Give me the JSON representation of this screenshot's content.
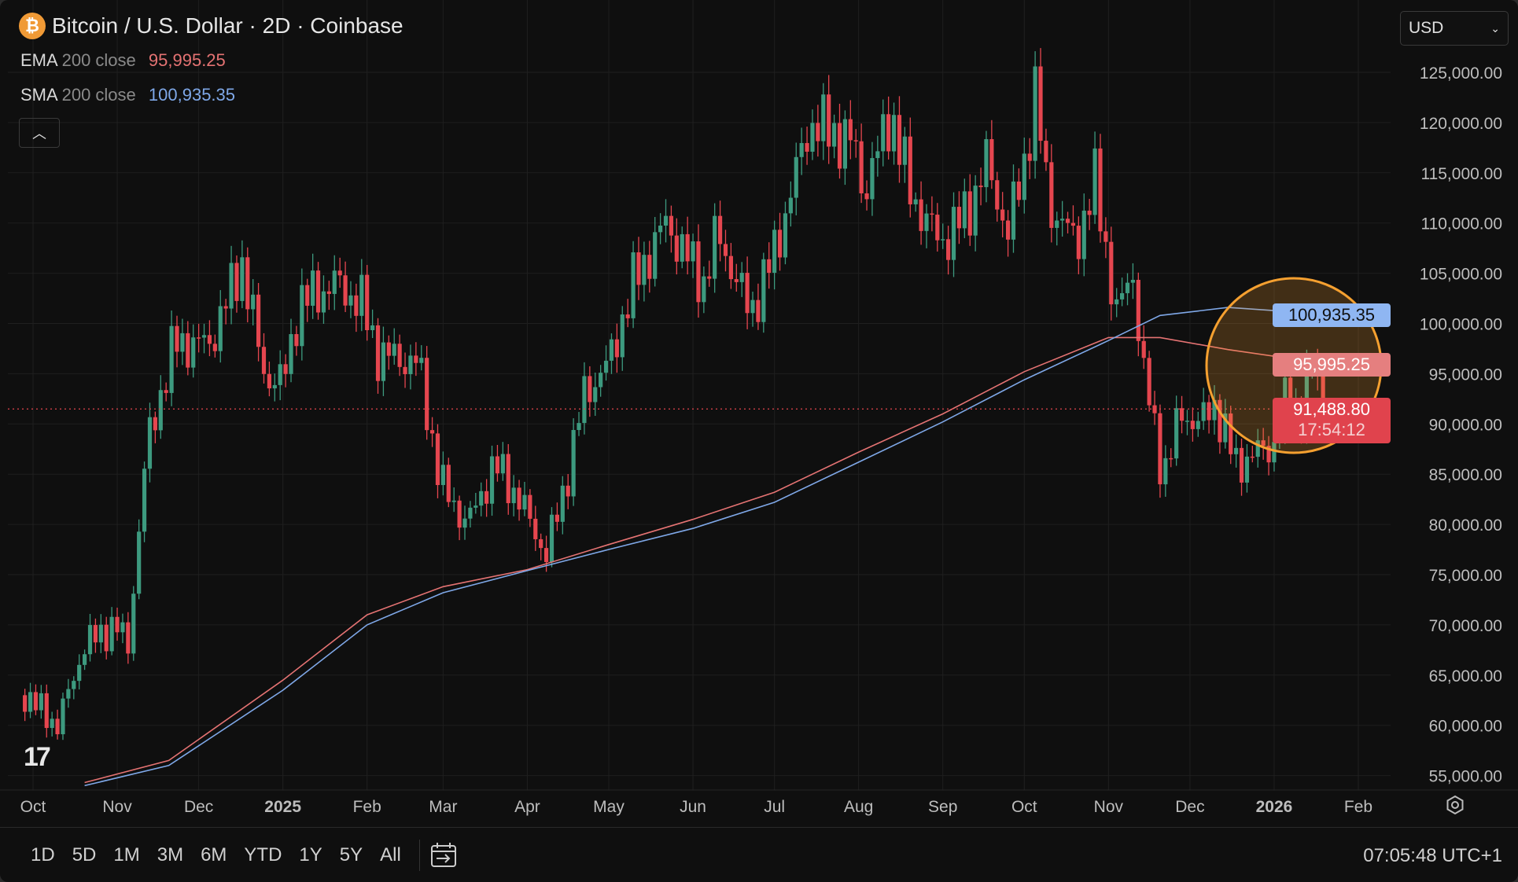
{
  "header": {
    "title": "Bitcoin / U.S. Dollar · 2D · Coinbase",
    "symbol_icon": "bitcoin-icon"
  },
  "indicators": [
    {
      "name": "EMA",
      "params": "200 close",
      "value": "95,995.25",
      "color": "#e57373"
    },
    {
      "name": "SMA",
      "params": "200 close",
      "value": "100,935.35",
      "color": "#7fa8e8"
    }
  ],
  "currency_select": {
    "value": "USD"
  },
  "price_tags": {
    "sma": "100,935.35",
    "ema": "95,995.25",
    "last": "91,488.80",
    "countdown": "17:54:12"
  },
  "toolbar": {
    "ranges": [
      "1D",
      "5D",
      "1M",
      "3M",
      "6M",
      "YTD",
      "1Y",
      "5Y",
      "All"
    ],
    "clock": "07:05:48 UTC+1"
  },
  "colors": {
    "up": "#3d9a7f",
    "down": "#e5464f",
    "bg": "#0f0f0f",
    "highlight": "#f5a030"
  },
  "chart_data": {
    "type": "candlestick",
    "interval": "2D",
    "ylim": [
      55000,
      125000
    ],
    "y_ticks": [
      "125,000.00",
      "120,000.00",
      "115,000.00",
      "110,000.00",
      "105,000.00",
      "100,000.00",
      "95,000.00",
      "90,000.00",
      "85,000.00",
      "80,000.00",
      "75,000.00",
      "70,000.00",
      "65,000.00",
      "60,000.00",
      "55,000.00"
    ],
    "x_ticks": [
      {
        "label": "Oct",
        "date": "2024-10-01"
      },
      {
        "label": "Nov",
        "date": "2024-11-01"
      },
      {
        "label": "Dec",
        "date": "2024-12-01"
      },
      {
        "label": "2025",
        "date": "2025-01-01",
        "bold": true
      },
      {
        "label": "Feb",
        "date": "2025-02-01"
      },
      {
        "label": "Mar",
        "date": "2025-03-01"
      },
      {
        "label": "Apr",
        "date": "2025-04-01"
      },
      {
        "label": "May",
        "date": "2025-05-01"
      },
      {
        "label": "Jun",
        "date": "2025-06-01"
      },
      {
        "label": "Jul",
        "date": "2025-07-01"
      },
      {
        "label": "Aug",
        "date": "2025-08-01"
      },
      {
        "label": "Sep",
        "date": "2025-09-01"
      },
      {
        "label": "Oct",
        "date": "2025-10-01"
      },
      {
        "label": "Nov",
        "date": "2025-11-01"
      },
      {
        "label": "Dec",
        "date": "2025-12-01"
      },
      {
        "label": "2026",
        "date": "2026-01-01",
        "bold": true
      },
      {
        "label": "Feb",
        "date": "2026-02-01"
      }
    ],
    "close_path": [
      [
        "2024-09-28",
        63000
      ],
      [
        "2024-10-10",
        60000
      ],
      [
        "2024-10-20",
        68000
      ],
      [
        "2024-10-31",
        70000
      ],
      [
        "2024-11-05",
        68000
      ],
      [
        "2024-11-12",
        88000
      ],
      [
        "2024-11-22",
        98000
      ],
      [
        "2024-12-05",
        98000
      ],
      [
        "2024-12-17",
        106000
      ],
      [
        "2024-12-25",
        95000
      ],
      [
        "2025-01-01",
        94000
      ],
      [
        "2025-01-07",
        102000
      ],
      [
        "2025-01-20",
        104000
      ],
      [
        "2025-01-30",
        102000
      ],
      [
        "2025-02-05",
        97000
      ],
      [
        "2025-02-20",
        96000
      ],
      [
        "2025-02-28",
        84000
      ],
      [
        "2025-03-10",
        80000
      ],
      [
        "2025-03-20",
        86000
      ],
      [
        "2025-03-28",
        83000
      ],
      [
        "2025-04-08",
        77000
      ],
      [
        "2025-04-15",
        84000
      ],
      [
        "2025-04-22",
        93000
      ],
      [
        "2025-05-01",
        96000
      ],
      [
        "2025-05-10",
        104000
      ],
      [
        "2025-05-22",
        110000
      ],
      [
        "2025-06-05",
        104000
      ],
      [
        "2025-06-10",
        109000
      ],
      [
        "2025-06-22",
        101000
      ],
      [
        "2025-07-01",
        107000
      ],
      [
        "2025-07-10",
        116000
      ],
      [
        "2025-07-14",
        120000
      ],
      [
        "2025-07-30",
        118000
      ],
      [
        "2025-08-03",
        113000
      ],
      [
        "2025-08-13",
        121000
      ],
      [
        "2025-08-20",
        113000
      ],
      [
        "2025-08-31",
        108000
      ],
      [
        "2025-09-10",
        111000
      ],
      [
        "2025-09-17",
        116000
      ],
      [
        "2025-09-25",
        109000
      ],
      [
        "2025-10-01",
        116000
      ],
      [
        "2025-10-05",
        123000
      ],
      [
        "2025-10-10",
        112000
      ],
      [
        "2025-10-20",
        108000
      ],
      [
        "2025-10-27",
        114000
      ],
      [
        "2025-11-04",
        101000
      ],
      [
        "2025-11-10",
        105000
      ],
      [
        "2025-11-14",
        95000
      ],
      [
        "2025-11-21",
        85000
      ],
      [
        "2025-11-28",
        91000
      ],
      [
        "2025-12-05",
        90000
      ],
      [
        "2025-12-10",
        92000
      ],
      [
        "2025-12-18",
        86000
      ],
      [
        "2025-12-25",
        87000
      ],
      [
        "2026-01-01",
        88000
      ],
      [
        "2026-01-05",
        92000
      ],
      [
        "2026-01-12",
        91000
      ],
      [
        "2026-01-14",
        97000
      ],
      [
        "2026-01-18",
        93000
      ],
      [
        "2026-01-20",
        91488.8
      ]
    ],
    "series": [
      {
        "name": "EMA 200 close",
        "color": "#e57373",
        "points": [
          [
            "2024-10-20",
            54300
          ],
          [
            "2024-11-20",
            56500
          ],
          [
            "2025-01-01",
            64500
          ],
          [
            "2025-02-01",
            71000
          ],
          [
            "2025-03-01",
            73800
          ],
          [
            "2025-04-01",
            75500
          ],
          [
            "2025-05-01",
            78000
          ],
          [
            "2025-06-01",
            80500
          ],
          [
            "2025-07-01",
            83200
          ],
          [
            "2025-08-01",
            87200
          ],
          [
            "2025-09-01",
            91000
          ],
          [
            "2025-10-01",
            95200
          ],
          [
            "2025-11-01",
            98600
          ],
          [
            "2025-11-20",
            98600
          ],
          [
            "2025-12-15",
            97400
          ],
          [
            "2026-01-20",
            96000
          ]
        ]
      },
      {
        "name": "SMA 200 close",
        "color": "#7fa8e8",
        "points": [
          [
            "2024-10-20",
            54000
          ],
          [
            "2024-11-20",
            56000
          ],
          [
            "2025-01-01",
            63500
          ],
          [
            "2025-02-01",
            70000
          ],
          [
            "2025-03-01",
            73200
          ],
          [
            "2025-04-01",
            75400
          ],
          [
            "2025-05-01",
            77500
          ],
          [
            "2025-06-01",
            79600
          ],
          [
            "2025-07-01",
            82200
          ],
          [
            "2025-08-01",
            86200
          ],
          [
            "2025-09-01",
            90200
          ],
          [
            "2025-10-01",
            94400
          ],
          [
            "2025-11-01",
            98300
          ],
          [
            "2025-11-20",
            100800
          ],
          [
            "2025-12-15",
            101600
          ],
          [
            "2026-01-20",
            100935
          ]
        ]
      }
    ],
    "last_price": 91488.8,
    "highlight": {
      "type": "circle",
      "center_date": "2026-01-10",
      "center_price": 94000
    }
  }
}
